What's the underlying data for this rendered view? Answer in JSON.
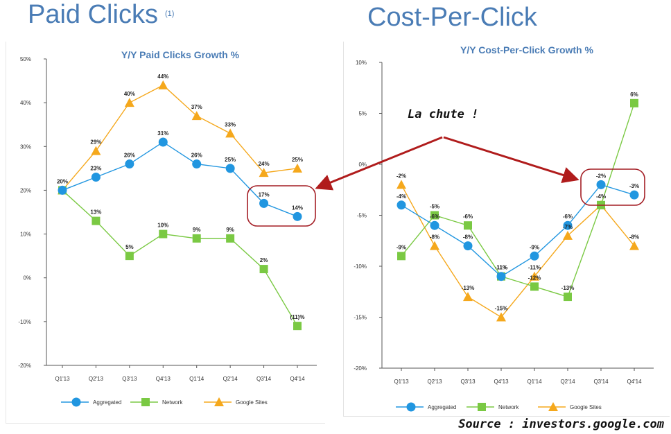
{
  "page": {
    "left_heading": "Paid Clicks",
    "left_heading_note": "(1)",
    "right_heading": "Cost-Per-Click",
    "annotation": "La chute !",
    "source": "Source : investors.google.com"
  },
  "colors": {
    "heading": "#4a7cb5",
    "aggregated": "#2196e0",
    "network": "#7ac943",
    "google_sites": "#f5a81c",
    "highlight": "#a31d24",
    "arrow": "#b01c1c"
  },
  "chart_data": [
    {
      "type": "line",
      "title": "Y/Y Paid Clicks Growth %",
      "categories": [
        "Q1'13",
        "Q2'13",
        "Q3'13",
        "Q4'13",
        "Q1'14",
        "Q2'14",
        "Q3'14",
        "Q4'14"
      ],
      "ylim": [
        -20,
        50
      ],
      "yticks": [
        "50%",
        "40%",
        "30%",
        "20%",
        "10%",
        "0%",
        "-10%",
        "-20%"
      ],
      "ytick_values": [
        50,
        40,
        30,
        20,
        10,
        0,
        -10,
        -20
      ],
      "legend_position": "bottom",
      "grid": false,
      "series": [
        {
          "name": "Aggregated",
          "marker": "circle",
          "values": [
            20,
            23,
            26,
            31,
            26,
            25,
            17,
            14
          ],
          "labels": [
            "",
            "23%",
            "26%",
            "31%",
            "26%",
            "25%",
            "17%",
            "14%"
          ]
        },
        {
          "name": "Network",
          "marker": "square",
          "values": [
            20,
            13,
            5,
            10,
            9,
            9,
            2,
            -11
          ],
          "labels": [
            "",
            "13%",
            "5%",
            "10%",
            "9%",
            "9%",
            "2%",
            "(11)%"
          ]
        },
        {
          "name": "Google Sites",
          "marker": "triangle",
          "values": [
            20,
            29,
            40,
            44,
            37,
            33,
            24,
            25
          ],
          "labels": [
            "20%",
            "29%",
            "40%",
            "44%",
            "37%",
            "33%",
            "24%",
            "25%"
          ]
        }
      ]
    },
    {
      "type": "line",
      "title": "Y/Y Cost-Per-Click Growth %",
      "categories": [
        "Q1'13",
        "Q2'13",
        "Q3'13",
        "Q4'13",
        "Q1'14",
        "Q2'14",
        "Q3'14",
        "Q4'14"
      ],
      "ylim": [
        -20,
        10
      ],
      "yticks": [
        "10%",
        "5%",
        "0%",
        "-5%",
        "-10%",
        "-15%",
        "-20%"
      ],
      "ytick_values": [
        10,
        5,
        0,
        -5,
        -10,
        -15,
        -20
      ],
      "legend_position": "bottom",
      "grid": false,
      "series": [
        {
          "name": "Aggregated",
          "marker": "circle",
          "values": [
            -4,
            -6,
            -8,
            -11,
            -9,
            -6,
            -2,
            -3
          ],
          "labels": [
            "-4%",
            "-6%",
            "-8%",
            "-11%",
            "-9%",
            "-6%",
            "-2%",
            "-3%"
          ]
        },
        {
          "name": "Network",
          "marker": "square",
          "values": [
            -9,
            -5,
            -6,
            -11,
            -12,
            -13,
            -4,
            6
          ],
          "labels": [
            "-9%",
            "-5%",
            "-6%",
            "-11%",
            "-12%",
            "-13%",
            "-4%",
            "6%"
          ]
        },
        {
          "name": "Google Sites",
          "marker": "triangle",
          "values": [
            -2,
            -8,
            -13,
            -15,
            -11,
            -7,
            -4,
            -8
          ],
          "labels": [
            "-2%",
            "-8%",
            "-13%",
            "-15%",
            "-11%",
            "-7%",
            "",
            "-8%"
          ]
        }
      ]
    }
  ]
}
